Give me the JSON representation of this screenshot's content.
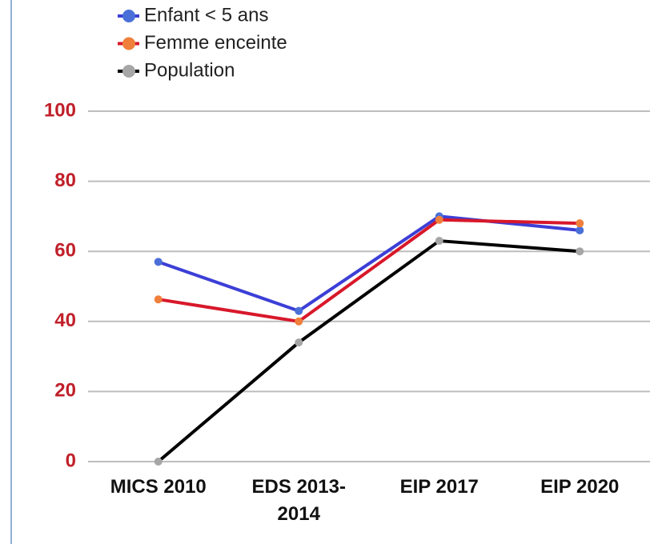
{
  "chart_data": {
    "type": "line",
    "categories": [
      "MICS 2010",
      "EDS 2013-2014",
      "EIP 2017",
      "EIP 2020"
    ],
    "series": [
      {
        "name": "Enfant < 5 ans",
        "color": "#3c3fd6",
        "marker_color": "#4a6fd8",
        "values": [
          57,
          43,
          70,
          66
        ]
      },
      {
        "name": "Femme enceinte",
        "color": "#d8182a",
        "marker_color": "#ef7f3a",
        "values": [
          46.3,
          40,
          69,
          68
        ]
      },
      {
        "name": "Population",
        "color": "#000000",
        "marker_color": "#a6a6a6",
        "values": [
          0,
          34,
          63,
          60
        ]
      }
    ],
    "ylim": [
      0,
      100
    ],
    "yticks": [
      0,
      20,
      40,
      60,
      80,
      100
    ],
    "grid": true,
    "legend": "top-left"
  }
}
